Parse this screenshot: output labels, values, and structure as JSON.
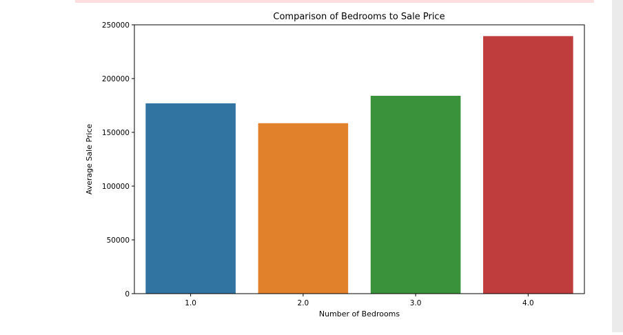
{
  "chart_data": {
    "type": "bar",
    "title": "Comparison of Bedrooms to Sale Price",
    "xlabel": "Number of Bedrooms",
    "ylabel": "Average Sale Price",
    "categories": [
      "1.0",
      "2.0",
      "3.0",
      "4.0"
    ],
    "values": [
      177000,
      158500,
      184000,
      239500
    ],
    "ylim": [
      0,
      250000
    ],
    "yticks": [
      0,
      50000,
      100000,
      150000,
      200000,
      250000
    ],
    "ytick_labels": [
      "0",
      "50000",
      "100000",
      "150000",
      "200000",
      "250000"
    ],
    "colors": [
      "#3274a1",
      "#e1812c",
      "#3a923a",
      "#c03d3e"
    ],
    "grid": false,
    "legend": "none"
  }
}
